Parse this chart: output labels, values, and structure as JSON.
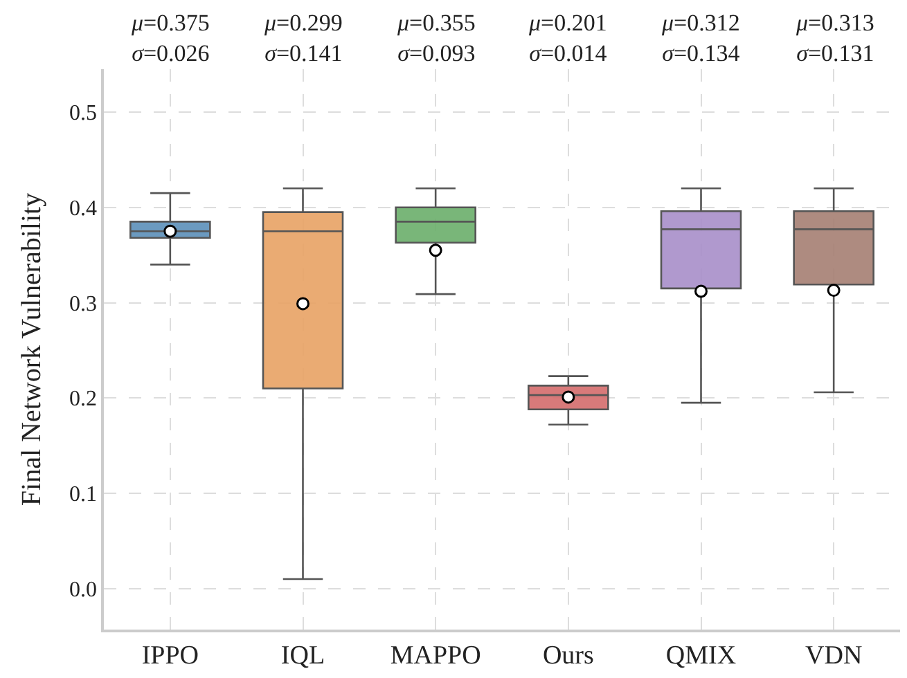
{
  "chart_data": {
    "type": "box",
    "ylabel": "Final Network Vulnerability",
    "categories": [
      "IPPO",
      "IQL",
      "MAPPO",
      "Ours",
      "QMIX",
      "VDN"
    ],
    "colors": [
      "#5b8fb9",
      "#e8a264",
      "#6aae6a",
      "#d46b6b",
      "#a78ec9",
      "#a57e72"
    ],
    "boxes": [
      {
        "low": 0.34,
        "q1": 0.368,
        "median": 0.375,
        "q3": 0.385,
        "high": 0.415,
        "mean": 0.375
      },
      {
        "low": 0.01,
        "q1": 0.21,
        "median": 0.375,
        "q3": 0.395,
        "high": 0.42,
        "mean": 0.299
      },
      {
        "low": 0.309,
        "q1": 0.363,
        "median": 0.385,
        "q3": 0.4,
        "high": 0.42,
        "mean": 0.355
      },
      {
        "low": 0.172,
        "q1": 0.188,
        "median": 0.203,
        "q3": 0.213,
        "high": 0.223,
        "mean": 0.201
      },
      {
        "low": 0.195,
        "q1": 0.315,
        "median": 0.377,
        "q3": 0.396,
        "high": 0.42,
        "mean": 0.312
      },
      {
        "low": 0.206,
        "q1": 0.319,
        "median": 0.377,
        "q3": 0.396,
        "high": 0.42,
        "mean": 0.313
      }
    ],
    "annotations": [
      "μ=0.375\nσ=0.026",
      "μ=0.299\nσ=0.141",
      "μ=0.355\nσ=0.093",
      "μ=0.201\nσ=0.014",
      "μ=0.312\nσ=0.134",
      "μ=0.313\nσ=0.131"
    ],
    "ylim": [
      -0.043,
      0.545
    ],
    "yticks": [
      {
        "value": 0,
        "label": "0.0"
      },
      0.1,
      0.2,
      0.3,
      0.4,
      0.5
    ],
    "grid": true,
    "marker": "circle"
  }
}
